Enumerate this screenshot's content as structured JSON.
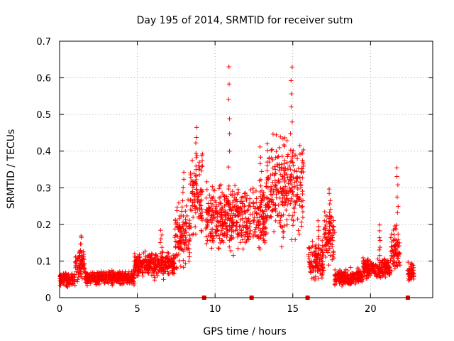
{
  "chart_data": {
    "type": "scatter",
    "title": "Day 195 of 2014, SRMTID for receiver sutm",
    "xlabel": "GPS time / hours",
    "ylabel": "SRMTID / TECUs",
    "xlim": [
      0,
      24
    ],
    "ylim": [
      0,
      0.7
    ],
    "xticks": [
      0,
      5,
      10,
      15,
      20
    ],
    "xtick_labels": [
      "0",
      "5",
      "10",
      "15",
      "20"
    ],
    "yticks": [
      0,
      0.1,
      0.2,
      0.3,
      0.4,
      0.5,
      0.6,
      0.7
    ],
    "ytick_labels": [
      "0",
      "0.1",
      "0.2",
      "0.3",
      "0.4",
      "0.5",
      "0.6",
      "0.7"
    ],
    "grid": true,
    "marker": "plus",
    "color": "#ff0000",
    "series": [
      {
        "name": "SRMTID",
        "segments": [
          {
            "x0": 0.0,
            "x1": 1.0,
            "mean": 0.05,
            "spread": 0.025
          },
          {
            "x0": 1.0,
            "x1": 1.6,
            "mean": 0.09,
            "spread": 0.05,
            "peak": 0.175
          },
          {
            "x0": 1.6,
            "x1": 4.8,
            "mean": 0.055,
            "spread": 0.025
          },
          {
            "x0": 4.8,
            "x1": 5.6,
            "mean": 0.09,
            "spread": 0.045
          },
          {
            "x0": 5.6,
            "x1": 7.4,
            "mean": 0.09,
            "spread": 0.05,
            "peak": 0.19
          },
          {
            "x0": 7.4,
            "x1": 8.4,
            "mean": 0.17,
            "spread": 0.12,
            "peak": 0.35
          },
          {
            "x0": 8.4,
            "x1": 9.2,
            "mean": 0.28,
            "spread": 0.14,
            "peak": 0.465
          },
          {
            "x0": 9.4,
            "x1": 12.3,
            "mean": 0.22,
            "spread": 0.12,
            "peak": 0.635
          },
          {
            "x0": 12.4,
            "x1": 13.3,
            "mean": 0.22,
            "spread": 0.12,
            "peak": 0.415
          },
          {
            "x0": 13.3,
            "x1": 15.7,
            "mean": 0.3,
            "spread": 0.18,
            "peak": 0.635
          },
          {
            "x0": 16.0,
            "x1": 17.0,
            "mean": 0.1,
            "spread": 0.07,
            "peak": 0.215
          },
          {
            "x0": 17.0,
            "x1": 17.7,
            "mean": 0.17,
            "spread": 0.1,
            "peak": 0.305
          },
          {
            "x0": 17.7,
            "x1": 19.5,
            "mean": 0.055,
            "spread": 0.03
          },
          {
            "x0": 19.5,
            "x1": 21.3,
            "mean": 0.08,
            "spread": 0.04,
            "peak": 0.2
          },
          {
            "x0": 21.3,
            "x1": 21.9,
            "mean": 0.13,
            "spread": 0.09,
            "peak": 0.36
          },
          {
            "x0": 22.4,
            "x1": 22.8,
            "mean": 0.07,
            "spread": 0.03
          }
        ]
      }
    ],
    "gap_markers_x": [
      9.3,
      12.35,
      15.95,
      22.4
    ]
  }
}
